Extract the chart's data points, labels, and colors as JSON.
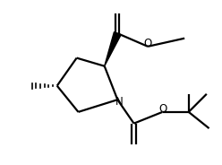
{
  "background": "#ffffff",
  "line_color": "#000000",
  "line_width": 1.6,
  "figure_size": [
    2.48,
    1.84
  ],
  "dpi": 100,
  "xlim": [
    -0.5,
    9.5
  ],
  "ylim": [
    -0.3,
    7.2
  ]
}
